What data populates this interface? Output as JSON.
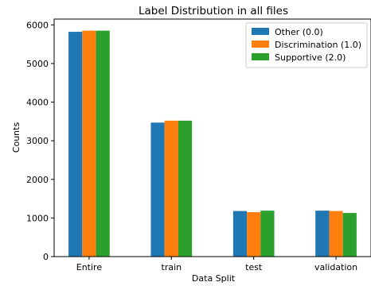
{
  "chart_data": {
    "type": "bar",
    "title": "Label Distribution in all files",
    "xlabel": "Data Split",
    "ylabel": "Counts",
    "categories": [
      "Entire",
      "train",
      "test",
      "validation"
    ],
    "series": [
      {
        "name": "Other (0.0)",
        "color": "#1f77b4",
        "values": [
          5820,
          3470,
          1180,
          1190
        ]
      },
      {
        "name": "Discrimination (1.0)",
        "color": "#ff7f0e",
        "values": [
          5850,
          3520,
          1150,
          1180
        ]
      },
      {
        "name": "Supportive (2.0)",
        "color": "#2ca02c",
        "values": [
          5850,
          3520,
          1190,
          1130
        ]
      }
    ],
    "ylim": [
      0,
      6150
    ],
    "yticks": [
      0,
      1000,
      2000,
      3000,
      4000,
      5000,
      6000
    ],
    "grid": false,
    "legend_position": "top-right"
  }
}
